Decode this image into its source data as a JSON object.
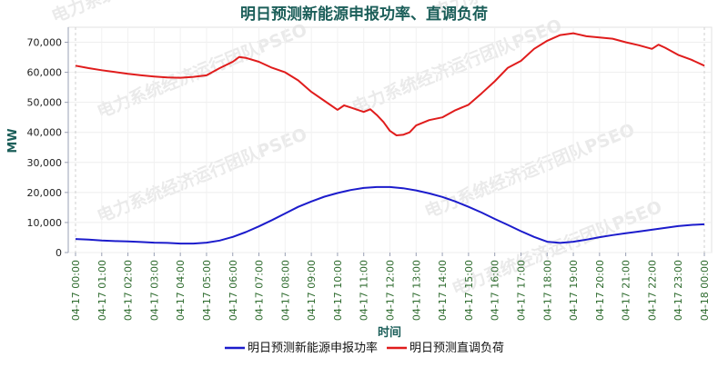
{
  "watermark": "电力系统经济运行团队PSEO",
  "chart_data": {
    "type": "line",
    "title": "明日预测新能源申报功率、直调负荷",
    "xlabel": "时间",
    "ylabel": "MW",
    "ylim": [
      0,
      75000
    ],
    "yticks": [
      0,
      10000,
      20000,
      30000,
      40000,
      50000,
      60000,
      70000
    ],
    "ytick_labels": [
      "0",
      "10,000",
      "20,000",
      "30,000",
      "40,000",
      "50,000",
      "60,000",
      "70,000"
    ],
    "x_tick_labels": [
      "04-17 00:00",
      "04-17 01:00",
      "04-17 02:00",
      "04-17 03:00",
      "04-17 04:00",
      "04-17 05:00",
      "04-17 06:00",
      "04-17 07:00",
      "04-17 08:00",
      "04-17 09:00",
      "04-17 10:00",
      "04-17 11:00",
      "04-17 12:00",
      "04-17 13:00",
      "04-17 14:00",
      "04-17 15:00",
      "04-17 16:00",
      "04-17 17:00",
      "04-17 18:00",
      "04-17 19:00",
      "04-17 20:00",
      "04-17 21:00",
      "04-17 22:00",
      "04-17 23:00",
      "04-18 00:00"
    ],
    "grid": true,
    "legend_position": "bottom-center",
    "series": [
      {
        "name": "明日预测新能源申报功率",
        "color": "#1c1ccc",
        "x": [
          0,
          0.5,
          1,
          1.5,
          2,
          2.5,
          3,
          3.5,
          4,
          4.5,
          5,
          5.5,
          6,
          6.5,
          7,
          7.5,
          8,
          8.5,
          9,
          9.5,
          10,
          10.5,
          11,
          11.5,
          12,
          12.5,
          13,
          13.5,
          14,
          14.5,
          15,
          15.5,
          16,
          16.5,
          17,
          17.5,
          18,
          18.5,
          19,
          19.5,
          20,
          20.5,
          21,
          21.5,
          22,
          22.5,
          23,
          23.5,
          24
        ],
        "values": [
          4500,
          4300,
          4000,
          3800,
          3700,
          3500,
          3300,
          3200,
          3000,
          3000,
          3300,
          4000,
          5200,
          6800,
          8700,
          10800,
          13000,
          15200,
          17000,
          18600,
          19800,
          20800,
          21500,
          21800,
          21800,
          21400,
          20700,
          19700,
          18500,
          17000,
          15200,
          13300,
          11200,
          9200,
          7100,
          5200,
          3600,
          3200,
          3600,
          4300,
          5100,
          5800,
          6400,
          7000,
          7600,
          8200,
          8800,
          9200,
          9400
        ]
      },
      {
        "name": "明日预测直调负荷",
        "color": "#e01c1c",
        "x": [
          0,
          0.5,
          1,
          1.5,
          2,
          2.5,
          3,
          3.5,
          4,
          4.5,
          5,
          5.5,
          6,
          6.25,
          6.5,
          7,
          7.5,
          8,
          8.5,
          9,
          9.5,
          10,
          10.25,
          10.5,
          11,
          11.25,
          11.5,
          11.75,
          12,
          12.25,
          12.5,
          12.75,
          13,
          13.5,
          14,
          14.5,
          15,
          15.5,
          16,
          16.5,
          17,
          17.5,
          18,
          18.5,
          19,
          19.5,
          20,
          20.5,
          21,
          21.5,
          22,
          22.25,
          22.5,
          23,
          23.5,
          24
        ],
        "values": [
          62200,
          61400,
          60700,
          60100,
          59500,
          59000,
          58600,
          58300,
          58200,
          58500,
          59000,
          61400,
          63500,
          65100,
          64800,
          63500,
          61500,
          60000,
          57300,
          53500,
          50500,
          47500,
          49000,
          48300,
          46800,
          47700,
          45800,
          43500,
          40500,
          39000,
          39200,
          40000,
          42300,
          44100,
          45000,
          47400,
          49200,
          53000,
          57000,
          61500,
          63800,
          67800,
          70500,
          72400,
          73000,
          72000,
          71600,
          71200,
          70000,
          69000,
          67800,
          69200,
          68200,
          65800,
          64200,
          62200
        ]
      }
    ]
  }
}
